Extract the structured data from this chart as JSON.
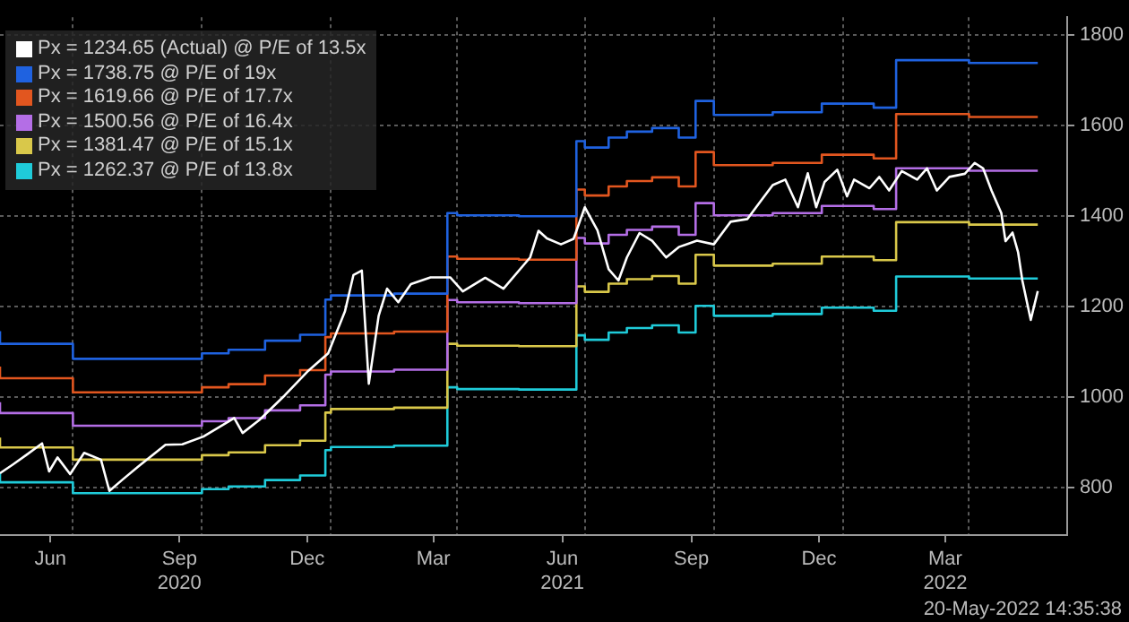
{
  "chart_data": {
    "type": "line",
    "legend": "top left",
    "grid": true,
    "marker": "none",
    "line_style": "solid",
    "xlim": [
      "2020-05-10",
      "2022-06-10"
    ],
    "xticks": [
      {
        "value": "2020-06-15",
        "label": "Jun"
      },
      {
        "value": "2020-07-01",
        "label": null
      },
      {
        "value": "2020-09-15",
        "label": "Sep\n2020"
      },
      {
        "value": "2020-10-01",
        "label": null
      },
      {
        "value": "2020-12-15",
        "label": "Dec"
      },
      {
        "value": "2021-01-01",
        "label": null
      },
      {
        "value": "2021-03-15",
        "label": "Mar"
      },
      {
        "value": "2021-04-01",
        "label": null
      },
      {
        "value": "2021-06-15",
        "label": "Jun\n2021"
      },
      {
        "value": "2021-07-01",
        "label": null
      },
      {
        "value": "2021-09-15",
        "label": "Sep"
      },
      {
        "value": "2021-10-01",
        "label": null
      },
      {
        "value": "2021-12-15",
        "label": "Dec"
      },
      {
        "value": "2022-01-01",
        "label": null
      },
      {
        "value": "2022-03-15",
        "label": "Mar\n2022"
      },
      {
        "value": "2022-04-01",
        "label": null
      }
    ],
    "ylim": [
      695,
      1840
    ],
    "yticks": [
      800,
      1000,
      1200,
      1400,
      1600,
      1800
    ],
    "annotations": [
      "20-May-2022 14:35:38"
    ],
    "series": [
      {
        "name": "Px = 1234.65 (Actual) @ P/E of 13.5x",
        "color": "#ffffff",
        "type": "line",
        "x": [
          "2020-05-10",
          "2020-05-19",
          "2020-05-29",
          "2020-06-09",
          "2020-06-14",
          "2020-06-20",
          "2020-06-29",
          "2020-07-09",
          "2020-07-21",
          "2020-07-27",
          "2020-08-05",
          "2020-08-17",
          "2020-09-05",
          "2020-09-17",
          "2020-10-02",
          "2020-10-24",
          "2020-10-30",
          "2020-11-11",
          "2020-11-29",
          "2020-12-16",
          "2020-12-30",
          "2021-01-11",
          "2021-01-17",
          "2021-01-23",
          "2021-01-28",
          "2021-02-04",
          "2021-02-10",
          "2021-02-18",
          "2021-02-27",
          "2021-03-13",
          "2021-03-27",
          "2021-04-05",
          "2021-04-21",
          "2021-05-04",
          "2021-05-23",
          "2021-05-29",
          "2021-06-04",
          "2021-06-14",
          "2021-06-23",
          "2021-07-01",
          "2021-07-10",
          "2021-07-18",
          "2021-07-25",
          "2021-07-31",
          "2021-08-09",
          "2021-08-18",
          "2021-08-28",
          "2021-09-06",
          "2021-09-19",
          "2021-10-01",
          "2021-10-13",
          "2021-10-25",
          "2021-11-03",
          "2021-11-12",
          "2021-11-21",
          "2021-11-30",
          "2021-12-07",
          "2021-12-13",
          "2021-12-19",
          "2021-12-28",
          "2022-01-04",
          "2022-01-09",
          "2022-01-20",
          "2022-01-27",
          "2022-02-03",
          "2022-02-12",
          "2022-02-23",
          "2022-03-02",
          "2022-03-09",
          "2022-03-18",
          "2022-03-29",
          "2022-04-05",
          "2022-04-11",
          "2022-04-17",
          "2022-04-24",
          "2022-04-27",
          "2022-05-02",
          "2022-05-06",
          "2022-05-09",
          "2022-05-15",
          "2022-05-20"
        ],
        "values": [
          832,
          851,
          873,
          898,
          836,
          867,
          830,
          877,
          862,
          793,
          817,
          848,
          895,
          896,
          913,
          954,
          921,
          950,
          1004,
          1059,
          1097,
          1190,
          1270,
          1280,
          1030,
          1180,
          1240,
          1210,
          1250,
          1265,
          1265,
          1234,
          1264,
          1240,
          1309,
          1368,
          1351,
          1338,
          1350,
          1420,
          1369,
          1283,
          1258,
          1309,
          1363,
          1346,
          1309,
          1332,
          1346,
          1338,
          1388,
          1394,
          1432,
          1469,
          1481,
          1420,
          1495,
          1420,
          1476,
          1503,
          1444,
          1481,
          1462,
          1487,
          1457,
          1500,
          1481,
          1506,
          1457,
          1487,
          1494,
          1518,
          1506,
          1457,
          1407,
          1345,
          1364,
          1320,
          1258,
          1171,
          1234.65
        ]
      },
      {
        "name": "Px = 1738.75 @ P/E of 19x",
        "color": "#1f62e0",
        "type": "step",
        "x": [
          "2020-05-10",
          "2020-07-01",
          "2020-10-01",
          "2020-10-20",
          "2020-11-15",
          "2020-12-10",
          "2020-12-28",
          "2021-01-01",
          "2021-02-15",
          "2021-03-25",
          "2021-04-01",
          "2021-05-15",
          "2021-06-25",
          "2021-07-01",
          "2021-07-18",
          "2021-07-31",
          "2021-08-18",
          "2021-09-06",
          "2021-09-18",
          "2021-10-01",
          "2021-11-12",
          "2021-12-17",
          "2022-01-23",
          "2022-02-08",
          "2022-04-01",
          "2022-05-20"
        ],
        "values": [
          1146,
          1118,
          1085,
          1097,
          1105,
          1125,
          1138,
          1216,
          1225,
          1229,
          1407,
          1402,
          1400,
          1566,
          1552,
          1574,
          1587,
          1595,
          1574,
          1655,
          1624,
          1630,
          1649,
          1640,
          1745,
          1738.75
        ]
      },
      {
        "name": "Px = 1619.66 @ P/E of 17.7x",
        "color": "#e2561f",
        "type": "step",
        "x": [
          "2020-05-10",
          "2020-07-01",
          "2020-10-01",
          "2020-10-20",
          "2020-11-15",
          "2020-12-10",
          "2020-12-28",
          "2021-01-01",
          "2021-02-15",
          "2021-03-25",
          "2021-04-01",
          "2021-05-15",
          "2021-06-25",
          "2021-07-01",
          "2021-07-18",
          "2021-07-31",
          "2021-08-18",
          "2021-09-06",
          "2021-09-18",
          "2021-10-01",
          "2021-11-12",
          "2021-12-17",
          "2022-01-23",
          "2022-02-08",
          "2022-04-01",
          "2022-05-20"
        ],
        "values": [
          1068,
          1042,
          1011,
          1022,
          1029,
          1048,
          1060,
          1133,
          1141,
          1145,
          1311,
          1306,
          1304,
          1459,
          1446,
          1466,
          1478,
          1486,
          1466,
          1542,
          1513,
          1518,
          1536,
          1528,
          1626,
          1619.66
        ]
      },
      {
        "name": "Px = 1500.56 @ P/E of 16.4x",
        "color": "#b46ee6",
        "type": "step",
        "x": [
          "2020-05-10",
          "2020-07-01",
          "2020-10-01",
          "2020-10-20",
          "2020-11-15",
          "2020-12-10",
          "2020-12-28",
          "2021-01-01",
          "2021-02-15",
          "2021-03-25",
          "2021-04-01",
          "2021-05-15",
          "2021-06-25",
          "2021-07-01",
          "2021-07-18",
          "2021-07-31",
          "2021-08-18",
          "2021-09-06",
          "2021-09-18",
          "2021-10-01",
          "2021-11-12",
          "2021-12-17",
          "2022-01-23",
          "2022-02-08",
          "2022-04-01",
          "2022-05-20"
        ],
        "values": [
          989,
          965,
          937,
          947,
          954,
          971,
          982,
          1050,
          1057,
          1061,
          1215,
          1210,
          1208,
          1352,
          1340,
          1359,
          1370,
          1377,
          1359,
          1429,
          1402,
          1407,
          1423,
          1416,
          1506,
          1500.56
        ]
      },
      {
        "name": "Px = 1381.47 @ P/E of 15.1x",
        "color": "#d9c84a",
        "type": "step",
        "x": [
          "2020-05-10",
          "2020-07-01",
          "2020-10-01",
          "2020-10-20",
          "2020-11-15",
          "2020-12-10",
          "2020-12-28",
          "2021-01-01",
          "2021-02-15",
          "2021-03-25",
          "2021-04-01",
          "2021-05-15",
          "2021-06-25",
          "2021-07-01",
          "2021-07-18",
          "2021-07-31",
          "2021-08-18",
          "2021-09-06",
          "2021-09-18",
          "2021-10-01",
          "2021-11-12",
          "2021-12-17",
          "2022-01-23",
          "2022-02-08",
          "2022-04-01",
          "2022-05-20"
        ],
        "values": [
          911,
          889,
          862,
          872,
          878,
          894,
          904,
          966,
          974,
          977,
          1118,
          1114,
          1113,
          1245,
          1233,
          1251,
          1261,
          1268,
          1251,
          1315,
          1291,
          1295,
          1311,
          1303,
          1387,
          1381.47
        ]
      },
      {
        "name": "Px = 1262.37 @ P/E of 13.8x",
        "color": "#1fcbd9",
        "type": "step",
        "x": [
          "2020-05-10",
          "2020-07-01",
          "2020-10-01",
          "2020-10-20",
          "2020-11-15",
          "2020-12-10",
          "2020-12-28",
          "2021-01-01",
          "2021-02-15",
          "2021-03-25",
          "2021-04-01",
          "2021-05-15",
          "2021-06-25",
          "2021-07-01",
          "2021-07-18",
          "2021-07-31",
          "2021-08-18",
          "2021-09-06",
          "2021-09-18",
          "2021-10-01",
          "2021-11-12",
          "2021-12-17",
          "2022-01-23",
          "2022-02-08",
          "2022-04-01",
          "2022-05-20"
        ],
        "values": [
          832,
          812,
          788,
          797,
          803,
          817,
          827,
          883,
          890,
          893,
          1022,
          1018,
          1017,
          1137,
          1127,
          1143,
          1153,
          1159,
          1143,
          1202,
          1180,
          1184,
          1198,
          1191,
          1267,
          1262.37
        ]
      }
    ]
  }
}
